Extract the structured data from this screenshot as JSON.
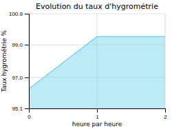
{
  "chart_data": {
    "type": "area",
    "title": "Evolution du taux d'hygrométrie",
    "xlabel": "heure par heure",
    "ylabel": "Taux hygrométrie %",
    "x": [
      0,
      1,
      2
    ],
    "values": [
      96.3,
      99.5,
      99.5
    ],
    "color": "#7dd4ed",
    "xlim": [
      0,
      2
    ],
    "ylim": [
      95.1,
      100.9
    ],
    "xticks": [
      0,
      1,
      2
    ],
    "yticks": [
      95.1,
      {
        "value": 97.0,
        "label": "97.0"
      },
      {
        "value": 99.0,
        "label": "99.0"
      },
      100.9
    ],
    "grid": true
  }
}
